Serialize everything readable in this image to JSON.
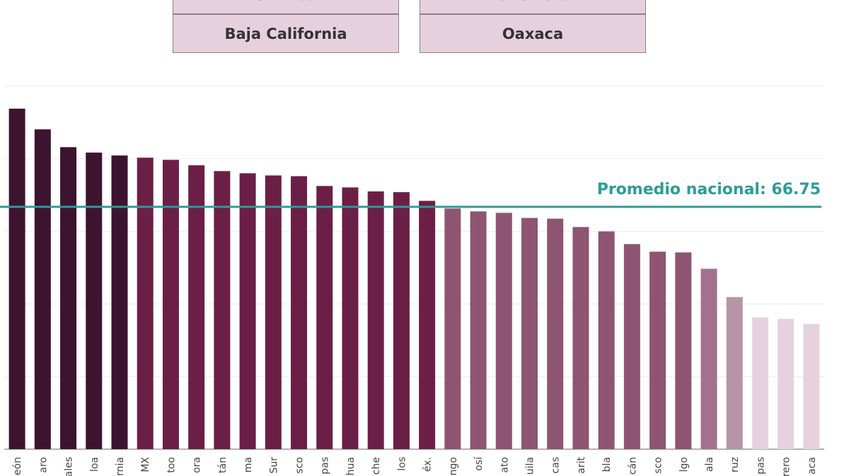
{
  "buttons": [
    "Sinaloa",
    "Guerrero",
    "Baja California",
    "Oaxaca"
  ],
  "chart_data": {
    "type": "bar",
    "categories": [
      "eón",
      "aro",
      "ales",
      "loa",
      "rnia",
      "MX",
      "too",
      "ora",
      "tán",
      "ma",
      "Sur",
      "sco",
      "pas",
      "hua",
      "che",
      "los",
      "éx.",
      "ngo",
      "osí",
      "ato",
      "uila",
      "cas",
      "arit",
      "bla",
      "cán",
      "sco",
      "lgo",
      "ala",
      "ruz",
      "pas",
      "rero",
      "aca"
    ],
    "values": [
      93.8,
      88.1,
      83.2,
      81.7,
      80.9,
      80.3,
      79.7,
      78.2,
      76.6,
      76.0,
      75.4,
      75.2,
      72.5,
      72.1,
      71.0,
      70.8,
      68.4,
      66.3,
      65.5,
      65.1,
      63.7,
      63.5,
      61.2,
      60.0,
      56.5,
      54.4,
      54.2,
      49.7,
      41.9,
      36.3,
      35.9,
      34.5
    ],
    "colors": [
      "#3d1430",
      "#3d1430",
      "#3d1430",
      "#3d1430",
      "#3d1430",
      "#6b1f47",
      "#6b1f47",
      "#6b1f47",
      "#6b1f47",
      "#6b1f47",
      "#6b1f47",
      "#6b1f47",
      "#6b1f47",
      "#6b1f47",
      "#6b1f47",
      "#6b1f47",
      "#6b1f47",
      "#8e5572",
      "#8e5572",
      "#8e5572",
      "#8e5572",
      "#8e5572",
      "#8e5572",
      "#8e5572",
      "#8e5572",
      "#8e5572",
      "#8e5572",
      "#a37190",
      "#b794a8",
      "#e6d2de",
      "#e6d2de",
      "#e6d2de"
    ],
    "ylim": [
      0,
      100
    ],
    "yticks": [
      0,
      20,
      40,
      60,
      80,
      100
    ],
    "grid": true,
    "tick_labels": false,
    "reference_line": {
      "value": 66.75,
      "label": "Promedio nacional: 66.75",
      "color": "#2e9b98"
    }
  }
}
